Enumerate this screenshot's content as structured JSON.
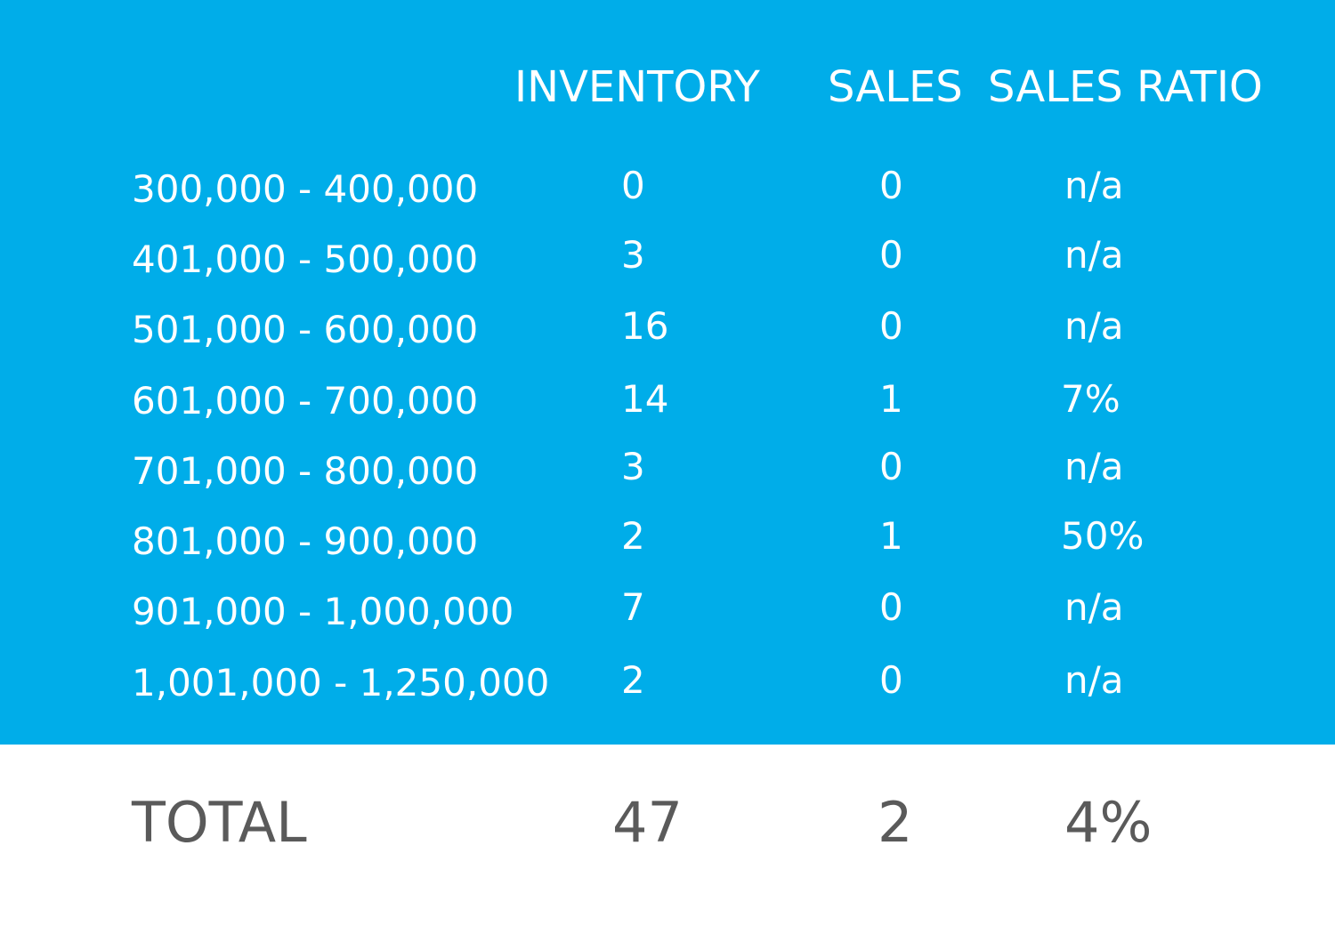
{
  "chart_data": {
    "type": "table",
    "columns": [
      "INVENTORY",
      "SALES",
      "SALES RATIO"
    ],
    "rows": [
      {
        "range": "300,000 - 400,000",
        "inventory": "0",
        "sales": "0",
        "ratio": "n/a"
      },
      {
        "range": "401,000 - 500,000",
        "inventory": "3",
        "sales": "0",
        "ratio": "n/a"
      },
      {
        "range": "501,000 - 600,000",
        "inventory": "16",
        "sales": "0",
        "ratio": "n/a"
      },
      {
        "range": "601,000 - 700,000",
        "inventory": "14",
        "sales": "1",
        "ratio": "7%"
      },
      {
        "range": "701,000 - 800,000",
        "inventory": "3",
        "sales": "0",
        "ratio": "n/a"
      },
      {
        "range": "801,000 - 900,000",
        "inventory": "2",
        "sales": "1",
        "ratio": "50%"
      },
      {
        "range": "901,000 - 1,000,000",
        "inventory": "7",
        "sales": "0",
        "ratio": "n/a"
      },
      {
        "range": "1,001,000 - 1,250,000",
        "inventory": "2",
        "sales": "0",
        "ratio": "n/a"
      }
    ],
    "total": {
      "label": "TOTAL",
      "inventory": "47",
      "sales": "2",
      "ratio": "4%"
    }
  },
  "colors": {
    "panel": "#00ade9",
    "header_text": "#ffffff",
    "total_text": "#5a5a5a"
  }
}
